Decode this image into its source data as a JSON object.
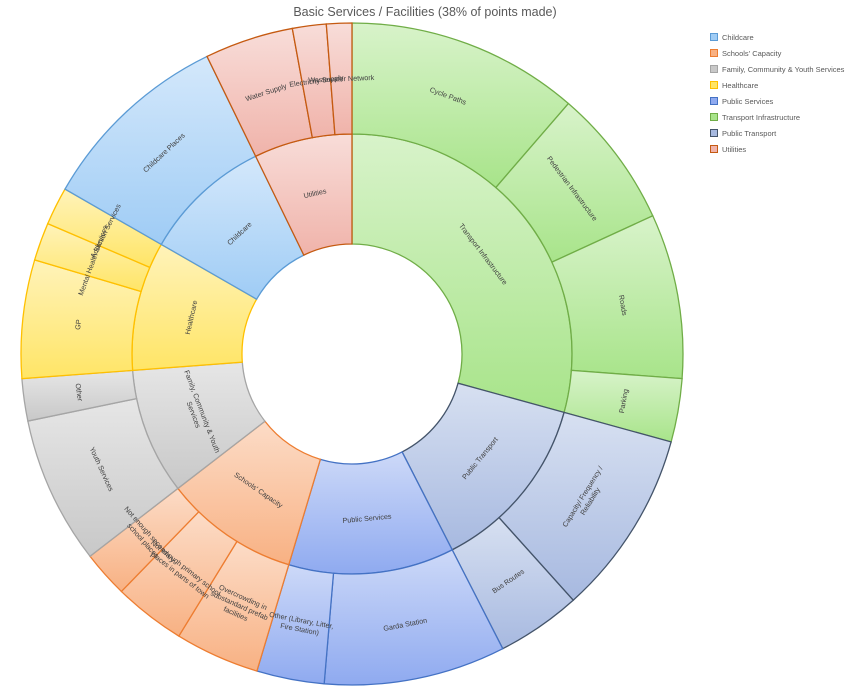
{
  "chart_data": {
    "type": "sunburst",
    "title": "Basic Services / Facilities (38% of points made)",
    "legend_position": "right",
    "categories": [
      {
        "name": "Transport Infrastructure",
        "color": "#a8e48a",
        "stroke": "#70ad47",
        "value": 14.2,
        "children": [
          {
            "label": "Cycle Paths",
            "value": 5.5
          },
          {
            "label": "Pedestrian Infrastructure",
            "value": 3.3
          },
          {
            "label": "Roads",
            "value": 3.9
          },
          {
            "label": "Parking",
            "value": 1.5
          }
        ]
      },
      {
        "name": "Public Transport",
        "color": "#a7b9e0",
        "stroke": "#44546a",
        "value": 6.4,
        "children": [
          {
            "label": "Capacity/ Frequency / Reliability",
            "value": 4.4
          },
          {
            "label": "Bus Routes",
            "value": 2.0
          }
        ]
      },
      {
        "name": "Public Services",
        "color": "#8faaf0",
        "stroke": "#4472c4",
        "value": 5.9,
        "children": [
          {
            "label": "Garda Station",
            "value": 4.3
          },
          {
            "label": "Other (Library, Litter, Fire Station)",
            "value": 1.6
          }
        ]
      },
      {
        "name": "Schools' Capacity",
        "color": "#f8b183",
        "stroke": "#ed7d31",
        "value": 4.8,
        "children": [
          {
            "label": "Overcrowding in substandard prefab facilities",
            "value": 2.0
          },
          {
            "label": "Not enough primary school places in parts of town",
            "value": 1.7
          },
          {
            "label": "Not enough secondary school places",
            "value": 1.1
          }
        ]
      },
      {
        "name": "Family, Community & Youth Services",
        "color": "#c8c8c8",
        "stroke": "#a5a5a5",
        "value": 4.5,
        "children": [
          {
            "label": "Youth Services",
            "value": 3.5
          },
          {
            "label": "Other",
            "value": 1.0
          }
        ]
      },
      {
        "name": "Healthcare",
        "color": "#ffe566",
        "stroke": "#ffc000",
        "value": 4.6,
        "children": [
          {
            "label": "GP",
            "value": 2.8
          },
          {
            "label": "Mental Health Services",
            "value": 0.9
          },
          {
            "label": "Addiction Services",
            "value": 0.9
          }
        ]
      },
      {
        "name": "Childcare",
        "color": "#9fccf5",
        "stroke": "#5b9bd5",
        "value": 4.6,
        "children": [
          {
            "label": "Childcare Places",
            "value": 4.6
          }
        ]
      },
      {
        "name": "Utilities",
        "color": "#f0b3aa",
        "stroke": "#c55a11",
        "value": 3.5,
        "children": [
          {
            "label": "Water Supply",
            "value": 2.1
          },
          {
            "label": "Electricity Supply",
            "value": 0.8
          },
          {
            "label": "Wastewater Network",
            "value": 0.6
          }
        ]
      }
    ],
    "legend": [
      {
        "label": "Childcare",
        "color": "#9fccf5",
        "stroke": "#5b9bd5"
      },
      {
        "label": "Schools' Capacity",
        "color": "#f8b183",
        "stroke": "#ed7d31"
      },
      {
        "label": "Family, Community & Youth Services",
        "color": "#c8c8c8",
        "stroke": "#a5a5a5"
      },
      {
        "label": "Healthcare",
        "color": "#ffe566",
        "stroke": "#ffc000"
      },
      {
        "label": "Public Services",
        "color": "#8faaf0",
        "stroke": "#4472c4"
      },
      {
        "label": "Transport Infrastructure",
        "color": "#a8e48a",
        "stroke": "#70ad47"
      },
      {
        "label": "Public Transport",
        "color": "#a7b9e0",
        "stroke": "#44546a"
      },
      {
        "label": "Utilities",
        "color": "#f0b3aa",
        "stroke": "#c55a11"
      }
    ]
  }
}
